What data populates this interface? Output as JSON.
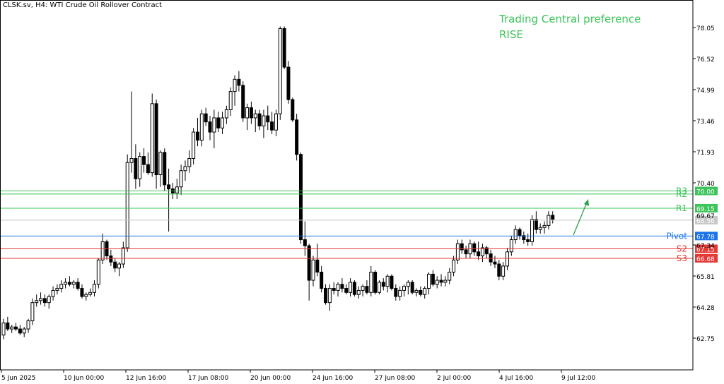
{
  "header": {
    "symbol": "CLSK.sv, H4:  WTI Crude Oil Rollover Contract"
  },
  "preference": {
    "line1": "Trading Central preference",
    "line2": "RISE",
    "color": "#3cc45a"
  },
  "chart_data": {
    "type": "candlestick",
    "title": "",
    "xlabel": "",
    "ylabel": "",
    "ylim": [
      61.8,
      78.9
    ],
    "grid": false,
    "y_ticks": [
      "78.05",
      "76.52",
      "74.99",
      "73.46",
      "71.93",
      "70.40",
      "67.34",
      "65.81",
      "64.28",
      "62.75"
    ],
    "x_ticks": [
      "5 Jun 2025",
      "10 Jun 00:00",
      "12 Jun 16:00",
      "17 Jun 08:00",
      "20 Jun 00:00",
      "24 Jun 16:00",
      "27 Jun 08:00",
      "2 Jul 00:00",
      "4 Jul 16:00",
      "9 Jul 12:00"
    ],
    "levels": [
      {
        "name": "R3",
        "value": 70.0,
        "label": "70.00",
        "color": "#3cc45a"
      },
      {
        "name": "R2",
        "value": 69.85,
        "label": "",
        "color": "#3cc45a"
      },
      {
        "name": "R1",
        "value": 69.15,
        "label": "69.15",
        "color": "#3cc45a"
      },
      {
        "name": "Pivot",
        "value": 67.78,
        "label": "67.78",
        "color": "#1a73e8"
      },
      {
        "name": "S2",
        "value": 67.15,
        "label": "67.15",
        "color": "#e53935"
      },
      {
        "name": "S3",
        "value": 66.68,
        "label": "66.68",
        "color": "#e53935"
      }
    ],
    "hidden_tick": "69.67",
    "current_price": {
      "value": 68.56,
      "label": "68.56",
      "color": "#c8c8c8"
    },
    "ohlc": [
      [
        62.9,
        63.7,
        62.7,
        63.5
      ],
      [
        63.5,
        63.8,
        63.1,
        63.2
      ],
      [
        63.2,
        63.4,
        63.0,
        63.3
      ],
      [
        63.3,
        63.5,
        63.1,
        63.2
      ],
      [
        63.2,
        63.4,
        62.9,
        63.0
      ],
      [
        63.0,
        63.3,
        62.8,
        63.2
      ],
      [
        63.2,
        63.7,
        63.0,
        63.6
      ],
      [
        63.6,
        64.7,
        63.4,
        64.5
      ],
      [
        64.5,
        64.9,
        64.3,
        64.6
      ],
      [
        64.6,
        65.0,
        64.4,
        64.7
      ],
      [
        64.7,
        64.9,
        64.3,
        64.5
      ],
      [
        64.5,
        64.9,
        64.2,
        64.8
      ],
      [
        64.8,
        65.3,
        64.6,
        65.1
      ],
      [
        65.1,
        65.4,
        64.9,
        65.2
      ],
      [
        65.2,
        65.6,
        65.0,
        65.4
      ],
      [
        65.4,
        65.7,
        65.2,
        65.5
      ],
      [
        65.5,
        65.8,
        65.3,
        65.4
      ],
      [
        65.4,
        65.6,
        65.2,
        65.5
      ],
      [
        65.5,
        65.7,
        65.1,
        65.2
      ],
      [
        65.2,
        65.4,
        64.7,
        64.8
      ],
      [
        64.8,
        65.0,
        64.6,
        64.9
      ],
      [
        64.9,
        65.2,
        64.8,
        65.0
      ],
      [
        65.0,
        65.6,
        64.8,
        65.4
      ],
      [
        65.4,
        66.7,
        65.2,
        66.6
      ],
      [
        66.6,
        67.9,
        66.4,
        67.5
      ],
      [
        67.5,
        67.6,
        66.6,
        66.8
      ],
      [
        66.8,
        67.1,
        66.3,
        66.5
      ],
      [
        66.5,
        66.7,
        66.0,
        66.2
      ],
      [
        66.2,
        66.5,
        65.8,
        66.4
      ],
      [
        66.4,
        67.5,
        66.2,
        67.2
      ],
      [
        67.2,
        71.8,
        67.0,
        71.4
      ],
      [
        71.4,
        74.9,
        70.9,
        71.6
      ],
      [
        71.6,
        72.3,
        70.1,
        70.6
      ],
      [
        70.6,
        71.9,
        70.2,
        71.7
      ],
      [
        71.7,
        72.1,
        70.9,
        71.3
      ],
      [
        71.3,
        71.9,
        70.8,
        70.9
      ],
      [
        70.9,
        74.8,
        70.7,
        74.3
      ],
      [
        74.3,
        74.5,
        70.1,
        70.8
      ],
      [
        70.8,
        72.0,
        70.2,
        71.9
      ],
      [
        71.9,
        72.1,
        70.0,
        70.3
      ],
      [
        70.3,
        71.1,
        68.0,
        70.1
      ],
      [
        70.1,
        70.4,
        69.6,
        69.9
      ],
      [
        69.9,
        70.6,
        69.6,
        70.2
      ],
      [
        70.2,
        71.3,
        69.8,
        71.0
      ],
      [
        71.0,
        71.5,
        70.5,
        71.2
      ],
      [
        71.2,
        72.0,
        70.9,
        71.6
      ],
      [
        71.6,
        73.1,
        71.3,
        72.9
      ],
      [
        72.9,
        73.6,
        72.2,
        72.5
      ],
      [
        72.5,
        74.0,
        72.2,
        73.8
      ],
      [
        73.8,
        74.1,
        73.2,
        73.4
      ],
      [
        73.4,
        73.7,
        72.5,
        72.9
      ],
      [
        72.9,
        74.0,
        72.1,
        73.6
      ],
      [
        73.6,
        73.9,
        72.9,
        73.1
      ],
      [
        73.1,
        73.9,
        72.8,
        73.6
      ],
      [
        73.6,
        74.2,
        73.3,
        74.0
      ],
      [
        74.0,
        75.1,
        73.7,
        74.9
      ],
      [
        74.9,
        75.7,
        74.2,
        75.5
      ],
      [
        75.5,
        75.9,
        74.9,
        75.2
      ],
      [
        75.2,
        75.4,
        73.4,
        73.6
      ],
      [
        73.6,
        74.3,
        73.0,
        74.1
      ],
      [
        74.1,
        74.4,
        73.3,
        73.6
      ],
      [
        73.6,
        74.0,
        72.9,
        73.8
      ],
      [
        73.8,
        74.0,
        73.0,
        73.2
      ],
      [
        73.2,
        74.0,
        72.6,
        73.7
      ],
      [
        73.7,
        74.2,
        73.0,
        73.4
      ],
      [
        73.4,
        73.9,
        72.8,
        73.0
      ],
      [
        73.0,
        74.0,
        72.7,
        73.8
      ],
      [
        73.8,
        78.1,
        73.5,
        78.0
      ],
      [
        78.0,
        78.1,
        76.0,
        76.1
      ],
      [
        76.1,
        76.4,
        74.3,
        74.5
      ],
      [
        74.5,
        74.6,
        73.4,
        73.5
      ],
      [
        73.5,
        73.8,
        71.5,
        71.8
      ],
      [
        71.8,
        71.9,
        67.4,
        67.6
      ],
      [
        67.6,
        68.5,
        66.8,
        67.3
      ],
      [
        67.3,
        67.4,
        64.6,
        65.6
      ],
      [
        65.6,
        66.8,
        65.3,
        66.6
      ],
      [
        66.6,
        67.4,
        65.8,
        66.0
      ],
      [
        66.0,
        66.3,
        65.0,
        65.2
      ],
      [
        65.2,
        65.4,
        64.4,
        64.5
      ],
      [
        64.5,
        65.4,
        64.1,
        65.2
      ],
      [
        65.2,
        65.5,
        64.9,
        65.1
      ],
      [
        65.1,
        65.5,
        64.8,
        65.4
      ],
      [
        65.4,
        65.7,
        65.0,
        65.2
      ],
      [
        65.2,
        65.4,
        64.9,
        65.0
      ],
      [
        65.0,
        65.7,
        64.8,
        65.5
      ],
      [
        65.5,
        65.6,
        64.8,
        64.9
      ],
      [
        64.9,
        65.3,
        64.7,
        65.1
      ],
      [
        65.1,
        65.4,
        64.8,
        65.3
      ],
      [
        65.3,
        65.6,
        64.9,
        65.0
      ],
      [
        65.0,
        66.3,
        64.8,
        66.0
      ],
      [
        66.0,
        66.1,
        64.9,
        65.0
      ],
      [
        65.0,
        65.6,
        64.9,
        65.5
      ],
      [
        65.5,
        65.7,
        65.1,
        65.3
      ],
      [
        65.3,
        65.9,
        65.0,
        65.8
      ],
      [
        65.8,
        65.9,
        65.1,
        65.2
      ],
      [
        65.2,
        65.4,
        64.6,
        64.8
      ],
      [
        64.8,
        65.3,
        64.6,
        65.1
      ],
      [
        65.1,
        65.4,
        64.8,
        65.3
      ],
      [
        65.3,
        65.6,
        64.9,
        65.5
      ],
      [
        65.5,
        65.6,
        64.9,
        65.0
      ],
      [
        65.0,
        65.2,
        64.8,
        65.1
      ],
      [
        65.1,
        65.3,
        64.8,
        64.9
      ],
      [
        64.9,
        65.3,
        64.7,
        65.2
      ],
      [
        65.2,
        66.0,
        64.9,
        65.9
      ],
      [
        65.9,
        66.1,
        65.3,
        65.4
      ],
      [
        65.4,
        65.8,
        65.2,
        65.6
      ],
      [
        65.6,
        65.9,
        65.3,
        65.5
      ],
      [
        65.5,
        65.8,
        65.3,
        65.6
      ],
      [
        65.6,
        66.2,
        65.4,
        66.0
      ],
      [
        66.0,
        66.8,
        65.8,
        66.6
      ],
      [
        66.6,
        67.6,
        66.4,
        67.4
      ],
      [
        67.4,
        67.6,
        66.9,
        67.1
      ],
      [
        67.1,
        67.3,
        66.7,
        66.9
      ],
      [
        66.9,
        67.6,
        66.7,
        67.4
      ],
      [
        67.4,
        67.5,
        66.8,
        67.0
      ],
      [
        67.0,
        67.5,
        66.6,
        66.8
      ],
      [
        66.8,
        67.4,
        66.5,
        67.2
      ],
      [
        67.2,
        67.3,
        66.7,
        66.9
      ],
      [
        66.9,
        67.1,
        66.3,
        66.5
      ],
      [
        66.5,
        66.8,
        66.2,
        66.4
      ],
      [
        66.4,
        66.6,
        65.6,
        65.8
      ],
      [
        65.8,
        66.5,
        65.6,
        66.3
      ],
      [
        66.3,
        67.2,
        66.1,
        67.0
      ],
      [
        67.0,
        67.8,
        66.8,
        67.6
      ],
      [
        67.6,
        68.3,
        67.4,
        68.1
      ],
      [
        68.1,
        68.2,
        67.6,
        67.8
      ],
      [
        67.8,
        68.0,
        67.4,
        67.6
      ],
      [
        67.6,
        67.9,
        67.3,
        67.5
      ],
      [
        67.5,
        68.8,
        67.3,
        68.6
      ],
      [
        68.6,
        69.0,
        67.9,
        68.1
      ],
      [
        68.1,
        68.4,
        67.9,
        68.2
      ],
      [
        68.2,
        68.5,
        67.9,
        68.3
      ],
      [
        68.3,
        69.0,
        68.1,
        68.8
      ],
      [
        68.8,
        69.0,
        68.4,
        68.6
      ]
    ]
  }
}
